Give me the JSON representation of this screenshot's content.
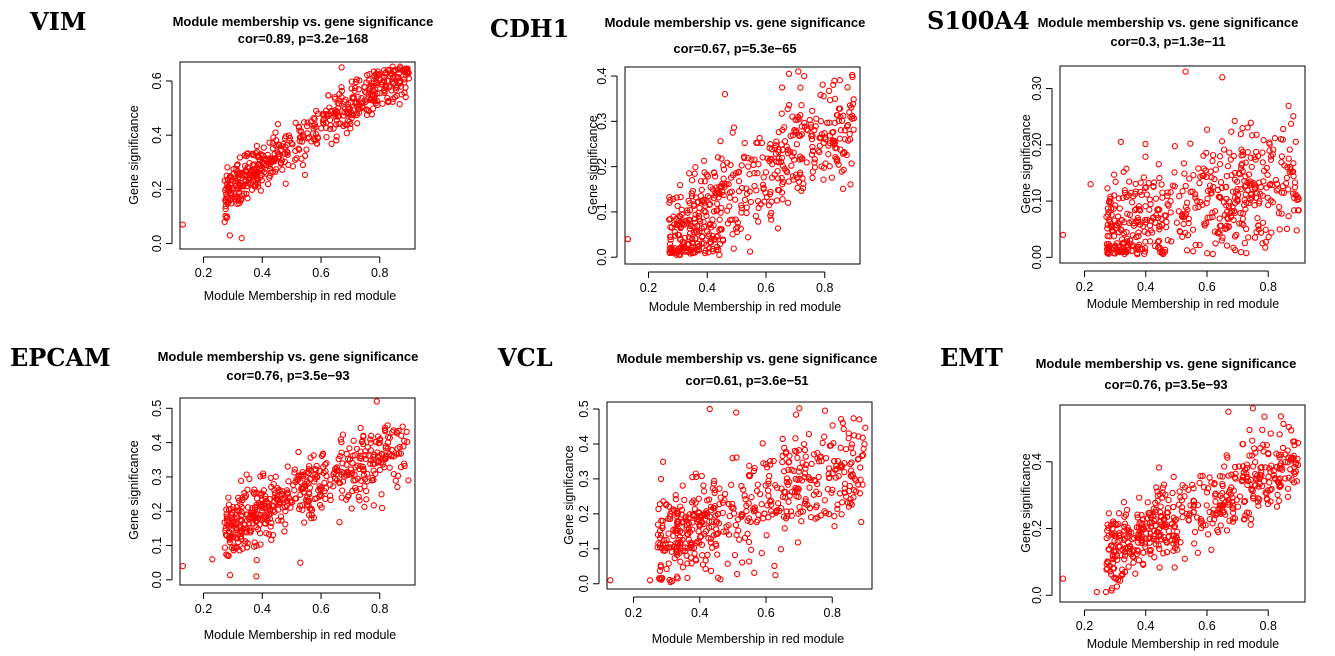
{
  "chart_data": [
    {
      "type": "scatter",
      "gene": "VIM",
      "title": "Module membership vs. gene significance",
      "subtitle": "cor=0.89, p=3.2e−168",
      "xlabel": "Module Membership in red module",
      "ylabel": "Gene significance",
      "xlim": [
        0.12,
        0.92
      ],
      "ylim": [
        -0.02,
        0.67
      ],
      "xticks": [
        {
          "v": 0.2,
          "label": "0.2"
        },
        {
          "v": 0.4,
          "label": "0.4"
        },
        {
          "v": 0.6,
          "label": "0.6"
        },
        {
          "v": 0.8,
          "label": "0.8"
        }
      ],
      "yticks": [
        {
          "v": 0.0,
          "label": "0.0"
        },
        {
          "v": 0.2,
          "label": "0.2"
        },
        {
          "v": 0.4,
          "label": "0.4"
        },
        {
          "v": 0.6,
          "label": "0.6"
        }
      ],
      "point_color": "#ff0000",
      "slope": 0.75,
      "intercept": -0.02,
      "noise": 0.045,
      "outliers": [
        [
          0.13,
          0.07
        ],
        [
          0.29,
          0.03
        ],
        [
          0.33,
          0.02
        ],
        [
          0.67,
          0.65
        ]
      ]
    },
    {
      "type": "scatter",
      "gene": "CDH1",
      "title": "Module membership vs. gene significance",
      "subtitle": "cor=0.67, p=5.3e−65",
      "xlabel": "Module Membership in red module",
      "ylabel": "Gene significance",
      "xlim": [
        0.12,
        0.92
      ],
      "ylim": [
        -0.015,
        0.42
      ],
      "xticks": [
        {
          "v": 0.2,
          "label": "0.2"
        },
        {
          "v": 0.4,
          "label": "0.4"
        },
        {
          "v": 0.6,
          "label": "0.6"
        },
        {
          "v": 0.8,
          "label": "0.8"
        }
      ],
      "yticks": [
        {
          "v": 0.0,
          "label": "0.0"
        },
        {
          "v": 0.1,
          "label": "0.1"
        },
        {
          "v": 0.2,
          "label": "0.2"
        },
        {
          "v": 0.3,
          "label": "0.3"
        },
        {
          "v": 0.4,
          "label": "0.4"
        }
      ],
      "point_color": "#ff0000",
      "slope": 0.42,
      "intercept": -0.07,
      "noise": 0.06,
      "outliers": [
        [
          0.13,
          0.04
        ],
        [
          0.46,
          0.36
        ],
        [
          0.71,
          0.41
        ],
        [
          0.73,
          0.4
        ]
      ]
    },
    {
      "type": "scatter",
      "gene": "S100A4",
      "title": "Module membership vs. gene significance",
      "subtitle": "cor=0.3, p=1.3e−11",
      "xlabel": "Module Membership in red module",
      "ylabel": "Gene significance",
      "xlim": [
        0.12,
        0.92
      ],
      "ylim": [
        -0.01,
        0.34
      ],
      "xticks": [
        {
          "v": 0.2,
          "label": "0.2"
        },
        {
          "v": 0.4,
          "label": "0.4"
        },
        {
          "v": 0.6,
          "label": "0.6"
        },
        {
          "v": 0.8,
          "label": "0.8"
        }
      ],
      "yticks": [
        {
          "v": 0.0,
          "label": "0.00"
        },
        {
          "v": 0.1,
          "label": "0.10"
        },
        {
          "v": 0.2,
          "label": "0.20"
        },
        {
          "v": 0.3,
          "label": "0.30"
        }
      ],
      "point_color": "#ff0000",
      "slope": 0.14,
      "intercept": 0.01,
      "noise": 0.055,
      "outliers": [
        [
          0.13,
          0.04
        ],
        [
          0.53,
          0.33
        ],
        [
          0.65,
          0.32
        ],
        [
          0.22,
          0.13
        ]
      ]
    },
    {
      "type": "scatter",
      "gene": "EPCAM",
      "title": "Module membership vs. gene significance",
      "subtitle": "cor=0.76, p=3.5e−93",
      "xlabel": "Module Membership in red module",
      "ylabel": "Gene significance",
      "xlim": [
        0.12,
        0.92
      ],
      "ylim": [
        -0.015,
        0.53
      ],
      "xticks": [
        {
          "v": 0.2,
          "label": "0.2"
        },
        {
          "v": 0.4,
          "label": "0.4"
        },
        {
          "v": 0.6,
          "label": "0.6"
        },
        {
          "v": 0.8,
          "label": "0.8"
        }
      ],
      "yticks": [
        {
          "v": 0.0,
          "label": "0.0"
        },
        {
          "v": 0.1,
          "label": "0.1"
        },
        {
          "v": 0.2,
          "label": "0.2"
        },
        {
          "v": 0.3,
          "label": "0.3"
        },
        {
          "v": 0.4,
          "label": "0.4"
        },
        {
          "v": 0.5,
          "label": "0.5"
        }
      ],
      "point_color": "#ff0000",
      "slope": 0.42,
      "intercept": 0.03,
      "noise": 0.05,
      "outliers": [
        [
          0.13,
          0.04
        ],
        [
          0.23,
          0.06
        ],
        [
          0.38,
          0.01
        ],
        [
          0.53,
          0.05
        ],
        [
          0.79,
          0.52
        ]
      ]
    },
    {
      "type": "scatter",
      "gene": "VCL",
      "title": "Module membership vs. gene significance",
      "subtitle": "cor=0.61, p=3.6e−51",
      "xlabel": "Module Membership in red module",
      "ylabel": "Gene significance",
      "xlim": [
        0.12,
        0.92
      ],
      "ylim": [
        -0.015,
        0.52
      ],
      "xticks": [
        {
          "v": 0.2,
          "label": "0.2"
        },
        {
          "v": 0.4,
          "label": "0.4"
        },
        {
          "v": 0.6,
          "label": "0.6"
        },
        {
          "v": 0.8,
          "label": "0.8"
        }
      ],
      "yticks": [
        {
          "v": 0.0,
          "label": "0.0"
        },
        {
          "v": 0.1,
          "label": "0.1"
        },
        {
          "v": 0.2,
          "label": "0.2"
        },
        {
          "v": 0.3,
          "label": "0.3"
        },
        {
          "v": 0.4,
          "label": "0.4"
        },
        {
          "v": 0.5,
          "label": "0.5"
        }
      ],
      "point_color": "#ff0000",
      "slope": 0.36,
      "intercept": 0.02,
      "noise": 0.075,
      "outliers": [
        [
          0.13,
          0.01
        ],
        [
          0.43,
          0.5
        ],
        [
          0.51,
          0.49
        ],
        [
          0.25,
          0.01
        ]
      ]
    },
    {
      "type": "scatter",
      "gene": "EMT",
      "title": "Module membership vs. gene significance",
      "subtitle": "cor=0.76, p=3.5e−93",
      "xlabel": "Module Membership in red module",
      "ylabel": "Gene significance",
      "xlim": [
        0.12,
        0.92
      ],
      "ylim": [
        -0.02,
        0.57
      ],
      "xticks": [
        {
          "v": 0.2,
          "label": "0.2"
        },
        {
          "v": 0.4,
          "label": "0.4"
        },
        {
          "v": 0.6,
          "label": "0.6"
        },
        {
          "v": 0.8,
          "label": "0.8"
        }
      ],
      "yticks": [
        {
          "v": 0.0,
          "label": "0.0"
        },
        {
          "v": 0.2,
          "label": "0.2"
        },
        {
          "v": 0.4,
          "label": "0.4"
        }
      ],
      "point_color": "#ff0000",
      "slope": 0.45,
      "intercept": 0.0,
      "noise": 0.055,
      "outliers": [
        [
          0.13,
          0.05
        ],
        [
          0.24,
          0.01
        ],
        [
          0.27,
          0.01
        ],
        [
          0.67,
          0.55
        ],
        [
          0.75,
          0.56
        ]
      ]
    }
  ]
}
